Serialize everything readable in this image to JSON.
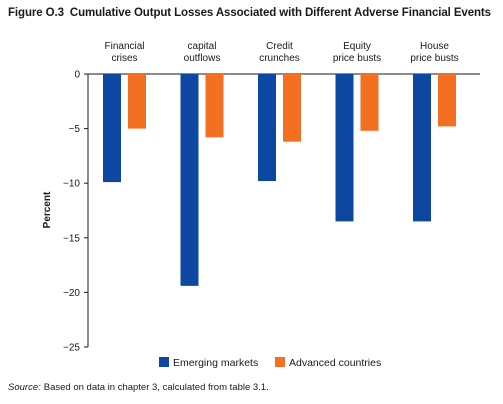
{
  "title": {
    "figure": "Figure O.3",
    "text": "Cumulative Output Losses Associated with Different Adverse Financial Events"
  },
  "source": {
    "label": "Source:",
    "text": "Based on data in chapter 3, calculated from table 3.1."
  },
  "colors": {
    "emerging": "#0d47a1",
    "advanced": "#f36f21"
  },
  "chart_data": {
    "type": "bar",
    "categories": [
      [
        "Financial",
        "crises"
      ],
      [
        "capital",
        "outflows"
      ],
      [
        "Credit",
        "crunches"
      ],
      [
        "Equity",
        "price busts"
      ],
      [
        "House",
        "price busts"
      ]
    ],
    "series": [
      {
        "name": "Emerging markets",
        "values": [
          -9.9,
          -19.4,
          -9.8,
          -13.5,
          -13.5
        ]
      },
      {
        "name": "Advanced countries",
        "values": [
          -5.0,
          -5.8,
          -6.2,
          -5.2,
          -4.8
        ]
      }
    ],
    "ylabel": "Percent",
    "ylim": [
      -25,
      0
    ],
    "yticks": [
      0,
      -5,
      -10,
      -15,
      -20,
      -25
    ],
    "ytick_labels": [
      "0",
      "−5",
      "−10",
      "−15",
      "−20",
      "−25"
    ],
    "legend_position": "bottom",
    "grid": false
  }
}
